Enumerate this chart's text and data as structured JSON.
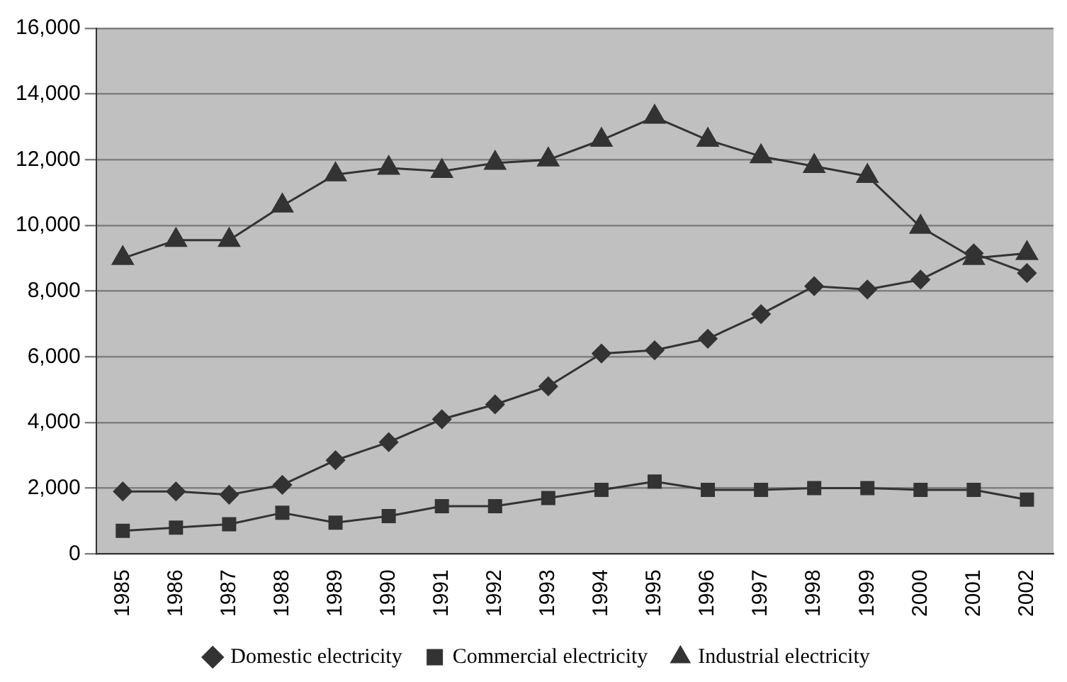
{
  "chart_data": {
    "type": "line",
    "categories": [
      "1985",
      "1986",
      "1987",
      "1988",
      "1989",
      "1990",
      "1991",
      "1992",
      "1993",
      "1994",
      "1995",
      "1996",
      "1997",
      "1998",
      "1999",
      "2000",
      "2001",
      "2002"
    ],
    "series": [
      {
        "name": "Domestic electricity",
        "color": "#333333",
        "marker": "diamond",
        "values": [
          1900,
          1900,
          1800,
          2100,
          2850,
          3400,
          4100,
          4550,
          5100,
          6100,
          6200,
          6550,
          7300,
          8150,
          8050,
          8350,
          9150,
          8550
        ]
      },
      {
        "name": "Commercial electricity",
        "color": "#333333",
        "marker": "square",
        "values": [
          700,
          800,
          900,
          1250,
          950,
          1150,
          1450,
          1450,
          1700,
          1950,
          2200,
          1950,
          1950,
          2000,
          2000,
          1950,
          1950,
          1650
        ]
      },
      {
        "name": "Industrial electricity",
        "color": "#333333",
        "marker": "triangle",
        "values": [
          9000,
          9550,
          9550,
          10600,
          11550,
          11750,
          11650,
          11900,
          12000,
          12600,
          13300,
          12600,
          12100,
          11800,
          11500,
          9950,
          9000,
          9150
        ]
      }
    ],
    "ylim": [
      0,
      16000
    ],
    "yticks": [
      {
        "value": 0,
        "label": "0"
      },
      {
        "value": 2000,
        "label": "2,000"
      },
      {
        "value": 4000,
        "label": "4,000"
      },
      {
        "value": 6000,
        "label": "6,000"
      },
      {
        "value": 8000,
        "label": "8,000"
      },
      {
        "value": 10000,
        "label": "10,000"
      },
      {
        "value": 12000,
        "label": "12,000"
      },
      {
        "value": 14000,
        "label": "14,000"
      },
      {
        "value": 16000,
        "label": "16,000"
      }
    ],
    "grid": "y",
    "legend": "bottom"
  }
}
